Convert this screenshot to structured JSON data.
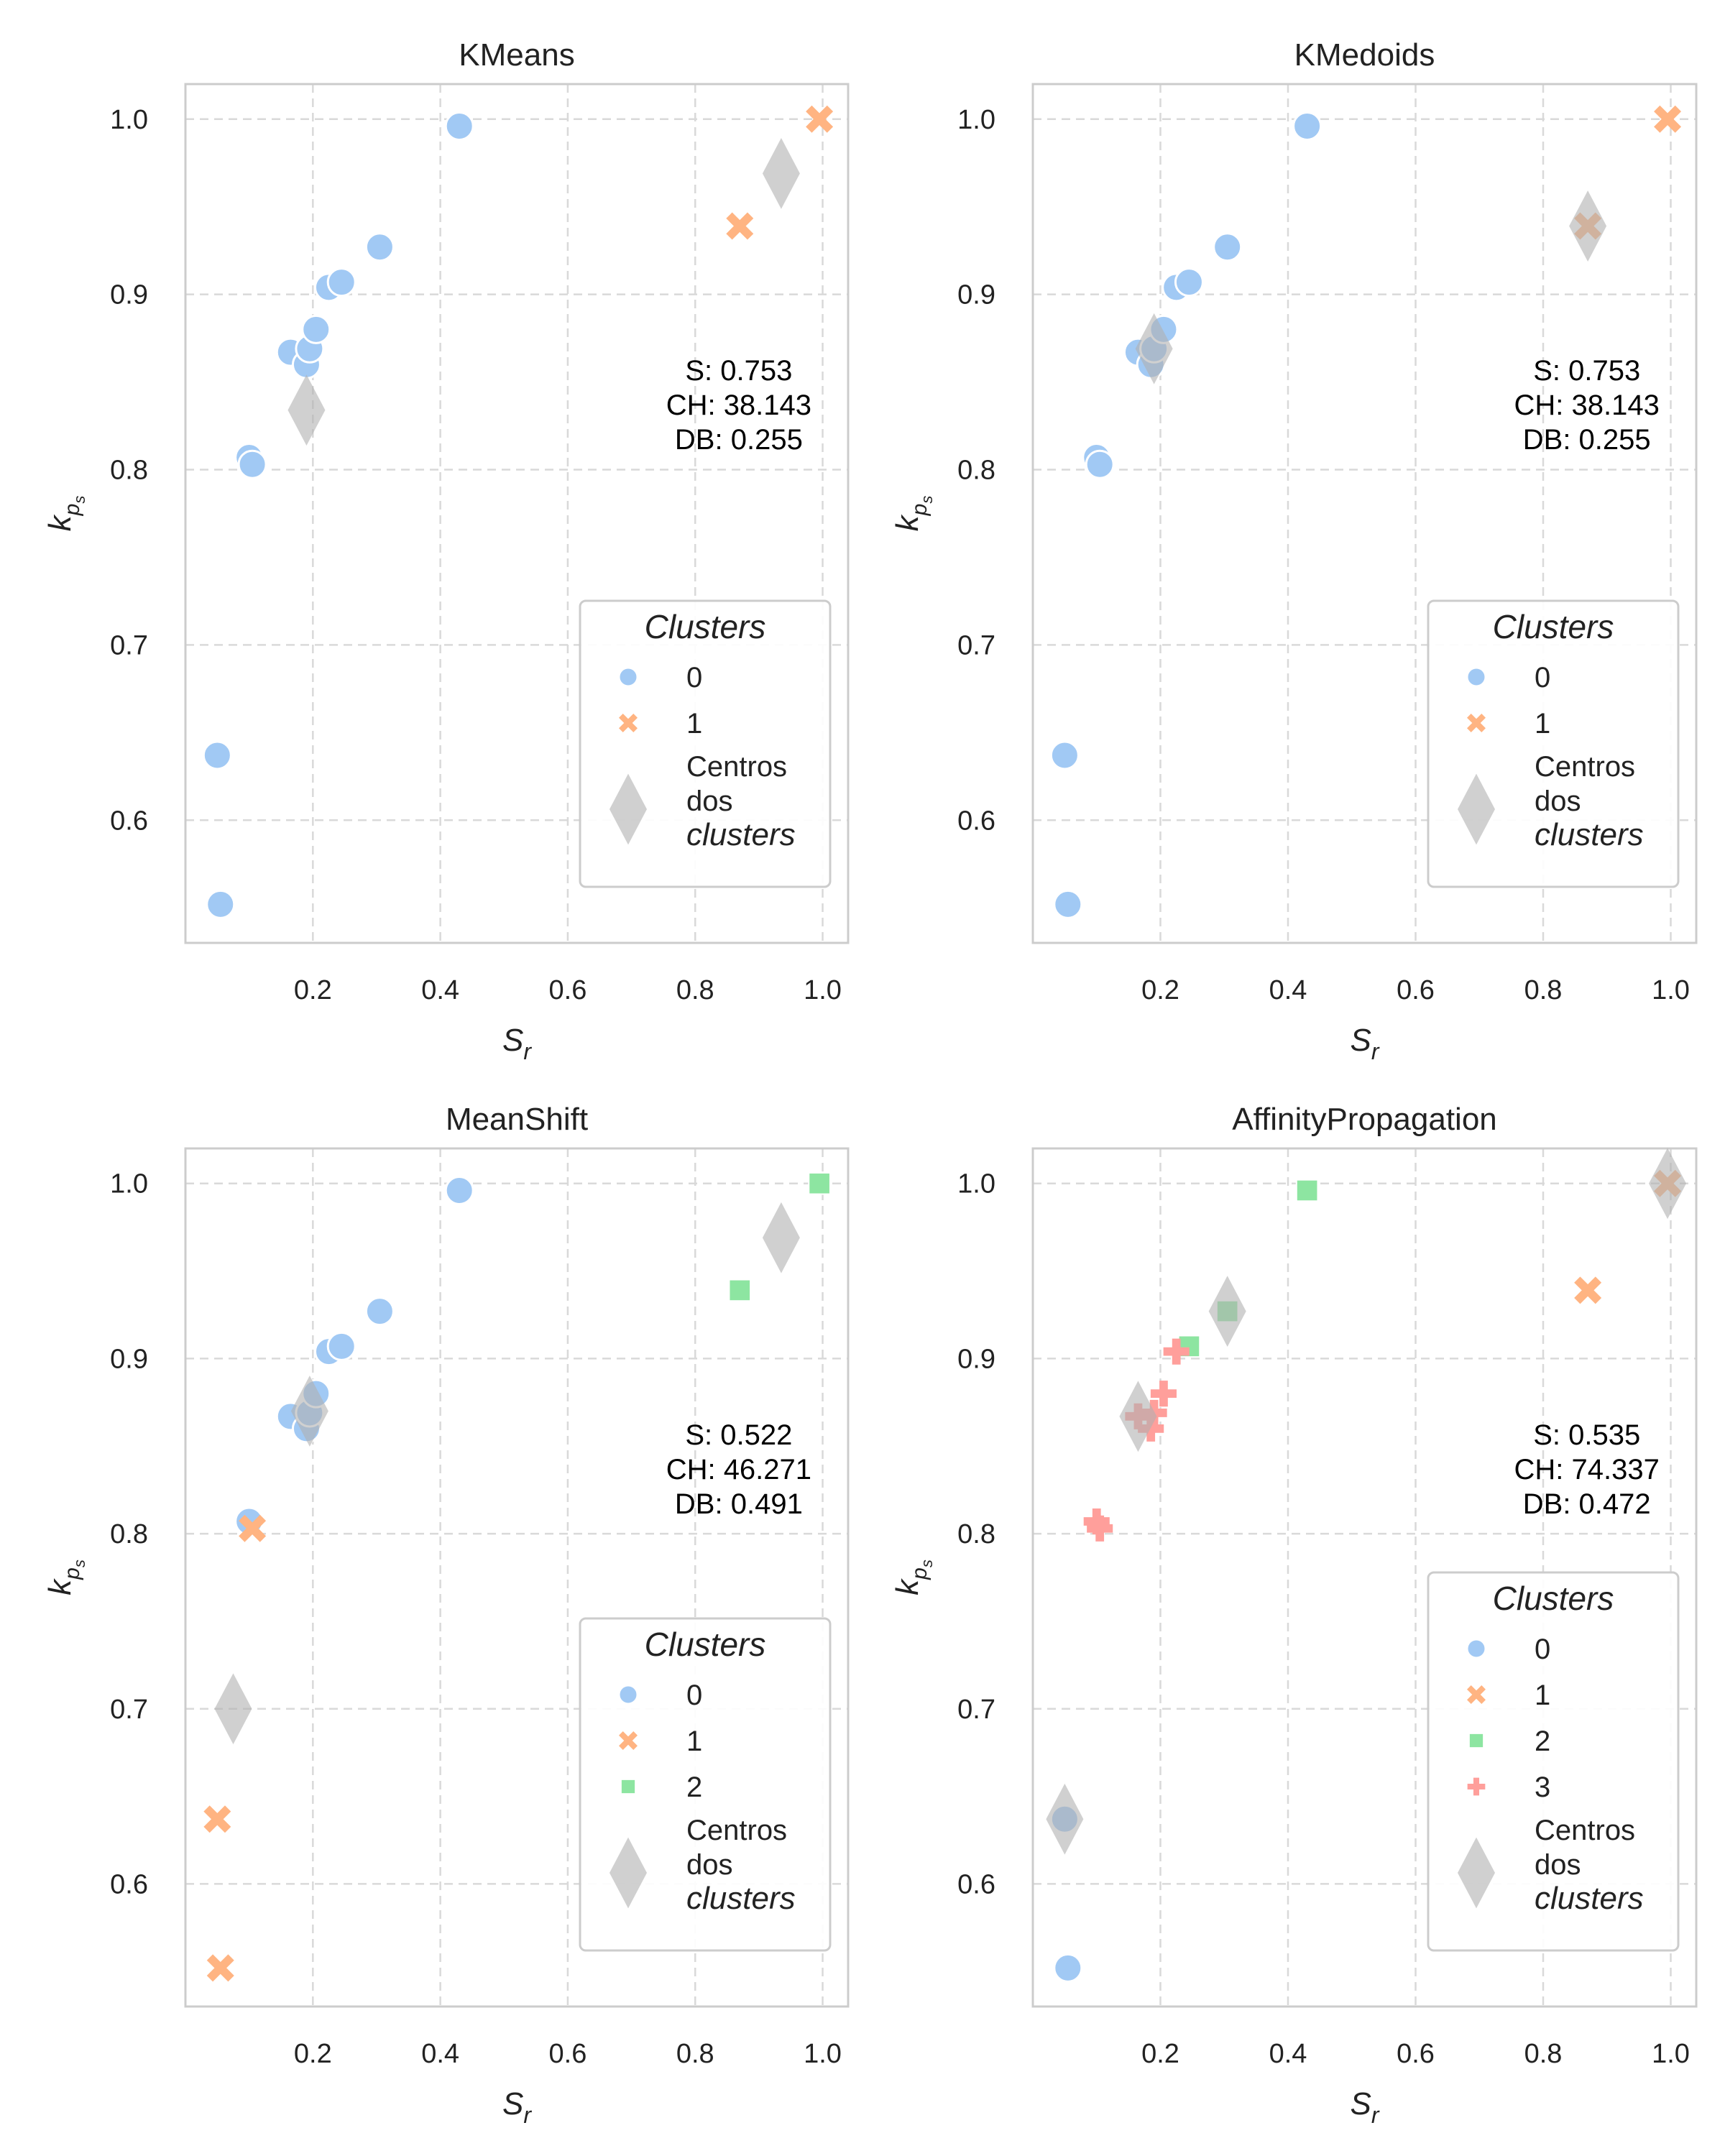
{
  "chart_data": [
    {
      "type": "scatter",
      "title": "KMeans",
      "xlabel": "S_r",
      "ylabel": "k_ps",
      "xlim": [
        0.0,
        1.04
      ],
      "ylim": [
        0.53,
        1.02
      ],
      "xticks": [
        0.2,
        0.4,
        0.6,
        0.8,
        1.0
      ],
      "yticks": [
        0.6,
        0.7,
        0.8,
        0.9,
        1.0
      ],
      "grid": true,
      "metrics": [
        "S: 0.753",
        "CH: 38.143",
        "DB: 0.255"
      ],
      "legend": {
        "title": "Clusters",
        "placement": "lower-right",
        "entries": [
          "0",
          "1"
        ],
        "centers_label": [
          "Centros",
          "dos",
          "clusters"
        ]
      },
      "series": [
        {
          "cluster": 0,
          "marker": "circle",
          "points": [
            [
              0.05,
              0.637
            ],
            [
              0.055,
              0.552
            ],
            [
              0.1,
              0.807
            ],
            [
              0.105,
              0.803
            ],
            [
              0.165,
              0.867
            ],
            [
              0.19,
              0.86
            ],
            [
              0.195,
              0.869
            ],
            [
              0.205,
              0.88
            ],
            [
              0.225,
              0.904
            ],
            [
              0.245,
              0.907
            ],
            [
              0.305,
              0.927
            ],
            [
              0.43,
              0.996
            ]
          ]
        },
        {
          "cluster": 1,
          "marker": "x",
          "points": [
            [
              0.87,
              0.939
            ],
            [
              0.995,
              1.0
            ]
          ]
        }
      ],
      "centers": [
        [
          0.19,
          0.834
        ],
        [
          0.935,
          0.969
        ]
      ]
    },
    {
      "type": "scatter",
      "title": "KMedoids",
      "xlabel": "S_r",
      "ylabel": "k_ps",
      "xlim": [
        0.0,
        1.04
      ],
      "ylim": [
        0.53,
        1.02
      ],
      "xticks": [
        0.2,
        0.4,
        0.6,
        0.8,
        1.0
      ],
      "yticks": [
        0.6,
        0.7,
        0.8,
        0.9,
        1.0
      ],
      "grid": true,
      "metrics": [
        "S: 0.753",
        "CH: 38.143",
        "DB: 0.255"
      ],
      "legend": {
        "title": "Clusters",
        "placement": "lower-right",
        "entries": [
          "0",
          "1"
        ],
        "centers_label": [
          "Centros",
          "dos",
          "clusters"
        ]
      },
      "series": [
        {
          "cluster": 0,
          "marker": "circle",
          "points": [
            [
              0.05,
              0.637
            ],
            [
              0.055,
              0.552
            ],
            [
              0.1,
              0.807
            ],
            [
              0.105,
              0.803
            ],
            [
              0.165,
              0.867
            ],
            [
              0.185,
              0.86
            ],
            [
              0.19,
              0.869
            ],
            [
              0.205,
              0.88
            ],
            [
              0.225,
              0.904
            ],
            [
              0.245,
              0.907
            ],
            [
              0.305,
              0.927
            ],
            [
              0.43,
              0.996
            ]
          ]
        },
        {
          "cluster": 1,
          "marker": "x",
          "points": [
            [
              0.87,
              0.939
            ],
            [
              0.995,
              1.0
            ]
          ]
        }
      ],
      "centers": [
        [
          0.19,
          0.869
        ],
        [
          0.87,
          0.939
        ]
      ]
    },
    {
      "type": "scatter",
      "title": "MeanShift",
      "xlabel": "S_r",
      "ylabel": "k_ps",
      "xlim": [
        0.0,
        1.04
      ],
      "ylim": [
        0.53,
        1.02
      ],
      "xticks": [
        0.2,
        0.4,
        0.6,
        0.8,
        1.0
      ],
      "yticks": [
        0.6,
        0.7,
        0.8,
        0.9,
        1.0
      ],
      "grid": true,
      "metrics": [
        "S: 0.522",
        "CH: 46.271",
        "DB: 0.491"
      ],
      "legend": {
        "title": "Clusters",
        "placement": "lower-right",
        "entries": [
          "0",
          "1",
          "2"
        ],
        "centers_label": [
          "Centros",
          "dos",
          "clusters"
        ]
      },
      "series": [
        {
          "cluster": 0,
          "marker": "circle",
          "points": [
            [
              0.1,
              0.807
            ],
            [
              0.165,
              0.867
            ],
            [
              0.19,
              0.86
            ],
            [
              0.195,
              0.869
            ],
            [
              0.205,
              0.88
            ],
            [
              0.225,
              0.904
            ],
            [
              0.245,
              0.907
            ],
            [
              0.305,
              0.927
            ],
            [
              0.43,
              0.996
            ]
          ]
        },
        {
          "cluster": 1,
          "marker": "x",
          "points": [
            [
              0.05,
              0.637
            ],
            [
              0.055,
              0.552
            ],
            [
              0.105,
              0.803
            ]
          ]
        },
        {
          "cluster": 2,
          "marker": "square",
          "points": [
            [
              0.87,
              0.939
            ],
            [
              0.995,
              1.0
            ]
          ]
        }
      ],
      "centers": [
        [
          0.075,
          0.7
        ],
        [
          0.195,
          0.87
        ],
        [
          0.935,
          0.969
        ]
      ]
    },
    {
      "type": "scatter",
      "title": "AffinityPropagation",
      "xlabel": "S_r",
      "ylabel": "k_ps",
      "xlim": [
        0.0,
        1.04
      ],
      "ylim": [
        0.53,
        1.02
      ],
      "xticks": [
        0.2,
        0.4,
        0.6,
        0.8,
        1.0
      ],
      "yticks": [
        0.6,
        0.7,
        0.8,
        0.9,
        1.0
      ],
      "grid": true,
      "metrics": [
        "S: 0.535",
        "CH: 74.337",
        "DB: 0.472"
      ],
      "legend": {
        "title": "Clusters",
        "placement": "lower-right",
        "entries": [
          "0",
          "1",
          "2",
          "3"
        ],
        "centers_label": [
          "Centros",
          "dos",
          "clusters"
        ]
      },
      "series": [
        {
          "cluster": 0,
          "marker": "circle",
          "points": [
            [
              0.05,
              0.637
            ],
            [
              0.055,
              0.552
            ]
          ]
        },
        {
          "cluster": 1,
          "marker": "x",
          "points": [
            [
              0.87,
              0.939
            ],
            [
              0.995,
              1.0
            ]
          ]
        },
        {
          "cluster": 2,
          "marker": "square",
          "points": [
            [
              0.245,
              0.907
            ],
            [
              0.305,
              0.927
            ],
            [
              0.43,
              0.996
            ]
          ]
        },
        {
          "cluster": 3,
          "marker": "plus",
          "points": [
            [
              0.1,
              0.807
            ],
            [
              0.105,
              0.803
            ],
            [
              0.165,
              0.867
            ],
            [
              0.185,
              0.86
            ],
            [
              0.19,
              0.869
            ],
            [
              0.205,
              0.88
            ],
            [
              0.225,
              0.904
            ]
          ]
        }
      ],
      "centers": [
        [
          0.05,
          0.637
        ],
        [
          0.165,
          0.867
        ],
        [
          0.305,
          0.927
        ],
        [
          0.995,
          1.0
        ]
      ]
    }
  ],
  "colors": {
    "cluster_0": "#a1c9f4",
    "cluster_1": "#ffb482",
    "cluster_2": "#8de5a1",
    "cluster_3": "#ff9f9b",
    "center": "#b0b0b0",
    "grid": "#d9d9d9",
    "frame": "#cccccc"
  }
}
